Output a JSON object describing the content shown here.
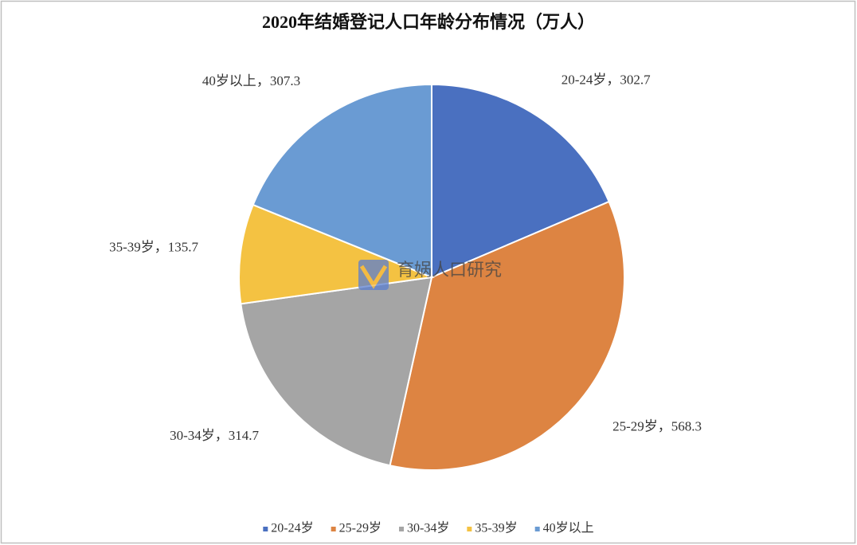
{
  "chart_data": {
    "type": "pie",
    "title": "2020年结婚登记人口年龄分布情况（万人）",
    "categories": [
      "20-24岁",
      "25-29岁",
      "30-34岁",
      "35-39岁",
      "40岁以上"
    ],
    "values": [
      302.7,
      568.3,
      314.7,
      135.7,
      307.3
    ],
    "colors": [
      "#4a70c0",
      "#dd8442",
      "#a5a5a5",
      "#f4c242",
      "#6a9bd3"
    ],
    "label_separator": "，",
    "legend": "bottom",
    "watermark": "育娲人口研究"
  }
}
